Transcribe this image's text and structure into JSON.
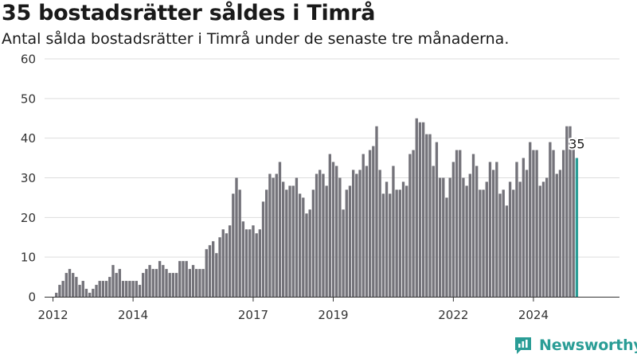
{
  "header": {
    "title": "35 bostadsrätter såldes i Timrå",
    "subtitle": "Antal sålda bostadsrätter i Timrå under de senaste tre månaderna."
  },
  "brand": {
    "name": "Newsworthy",
    "icon": "newsworthy-logo-icon",
    "color": "#2a9d96"
  },
  "colors": {
    "bar": "#74737a",
    "highlight": "#2a9d96",
    "grid": "#dddddd",
    "axis": "#333333"
  },
  "chart_data": {
    "type": "bar",
    "start": "2011-11",
    "interval": "month",
    "values": [
      0,
      0,
      0,
      1,
      3,
      4,
      6,
      7,
      6,
      5,
      3,
      4,
      2,
      1,
      2,
      3,
      4,
      4,
      4,
      5,
      8,
      6,
      7,
      4,
      4,
      4,
      4,
      4,
      3,
      6,
      7,
      8,
      7,
      7,
      9,
      8,
      7,
      6,
      6,
      6,
      9,
      9,
      9,
      7,
      8,
      7,
      7,
      7,
      12,
      13,
      14,
      11,
      15,
      17,
      16,
      18,
      26,
      30,
      27,
      19,
      17,
      17,
      18,
      16,
      17,
      24,
      27,
      31,
      30,
      31,
      34,
      29,
      27,
      28,
      28,
      30,
      26,
      25,
      21,
      22,
      27,
      31,
      32,
      31,
      28,
      36,
      34,
      33,
      30,
      22,
      27,
      28,
      32,
      31,
      32,
      36,
      33,
      37,
      38,
      43,
      32,
      26,
      29,
      26,
      33,
      27,
      27,
      29,
      28,
      36,
      37,
      45,
      44,
      44,
      41,
      41,
      33,
      39,
      30,
      30,
      25,
      30,
      34,
      37,
      37,
      30,
      28,
      31,
      36,
      33,
      27,
      27,
      29,
      34,
      32,
      34,
      26,
      27,
      23,
      29,
      27,
      34,
      29,
      35,
      32,
      39,
      37,
      37,
      28,
      29,
      30,
      39,
      37,
      31,
      32,
      37,
      43,
      43,
      38,
      35
    ],
    "highlight_last": true,
    "label": "35",
    "xticks": [
      "2012",
      "2014",
      "2017",
      "2019",
      "2022",
      "2024"
    ],
    "ylim": [
      0,
      60
    ],
    "yticks": [
      0,
      10,
      20,
      30,
      40,
      50,
      60
    ],
    "grid": true,
    "xlabel": "",
    "ylabel": ""
  }
}
